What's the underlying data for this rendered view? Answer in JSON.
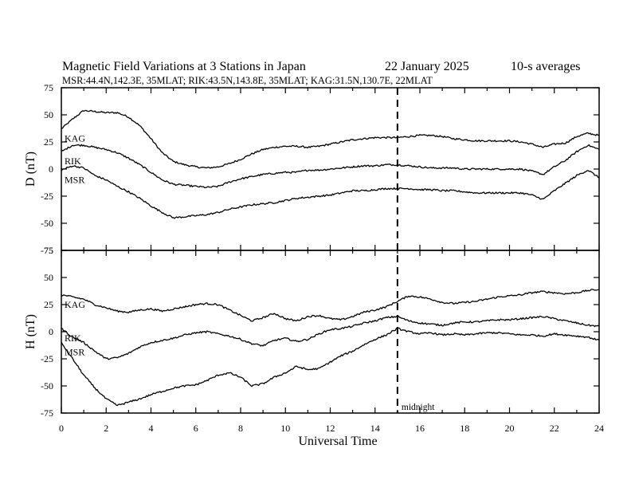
{
  "header": {
    "title": "Magnetic Field Variations at 3 Stations in Japan",
    "date": "22 January  2025",
    "averaging": "10-s averages",
    "stations": "MSR:44.4N,142.3E, 35MLAT;  RIK:43.5N,143.8E, 35MLAT;  KAG:31.5N,130.7E, 22MLAT"
  },
  "chart_data": [
    {
      "type": "line",
      "panel": "D",
      "ylabel": "D (nT)",
      "xlabel": "Universal Time",
      "xlim": [
        0,
        24
      ],
      "ylim": [
        -75,
        75
      ],
      "xticks": [
        0,
        2,
        4,
        6,
        8,
        10,
        12,
        14,
        16,
        18,
        20,
        22,
        24
      ],
      "yticks": [
        75,
        50,
        25,
        0,
        -25,
        -50,
        -75
      ],
      "grid": false,
      "x": [
        0,
        0.5,
        1,
        1.5,
        2,
        2.5,
        3,
        3.5,
        4,
        4.5,
        5,
        5.5,
        6,
        6.5,
        7,
        7.5,
        8,
        8.5,
        9,
        9.5,
        10,
        10.5,
        11,
        11.5,
        12,
        12.5,
        13,
        13.5,
        14,
        14.5,
        15,
        15.5,
        16,
        16.5,
        17,
        17.5,
        18,
        18.5,
        19,
        19.5,
        20,
        20.5,
        21,
        21.5,
        22,
        22.5,
        23,
        23.5,
        24
      ],
      "series": [
        {
          "name": "KAG",
          "values": [
            37,
            46,
            54,
            53,
            52,
            52,
            48,
            40,
            28,
            15,
            7,
            4,
            2,
            1,
            2,
            5,
            9,
            14,
            18,
            20,
            21,
            21,
            20,
            21,
            23,
            25,
            27,
            28,
            29,
            29,
            29,
            30,
            31,
            31,
            30,
            28,
            27,
            26,
            26,
            26,
            26,
            25,
            23,
            20,
            23,
            24,
            30,
            33,
            31
          ]
        },
        {
          "name": "RIK",
          "values": [
            16,
            22,
            22,
            20,
            18,
            15,
            10,
            4,
            -3,
            -10,
            -14,
            -15,
            -16,
            -17,
            -16,
            -12,
            -9,
            -7,
            -5,
            -4,
            -3,
            -3,
            -1,
            -1,
            0,
            1,
            2,
            3,
            3,
            4,
            4,
            3,
            2,
            1,
            1,
            1,
            0,
            0,
            0,
            0,
            0,
            0,
            -2,
            -5,
            2,
            8,
            16,
            22,
            18
          ]
        },
        {
          "name": "MSR",
          "values": [
            -1,
            3,
            1,
            -6,
            -10,
            -16,
            -21,
            -27,
            -34,
            -40,
            -45,
            -44,
            -43,
            -42,
            -40,
            -37,
            -35,
            -33,
            -32,
            -31,
            -29,
            -27,
            -26,
            -25,
            -24,
            -22,
            -20,
            -20,
            -19,
            -18,
            -18,
            -18,
            -19,
            -19,
            -20,
            -20,
            -21,
            -22,
            -22,
            -22,
            -22,
            -22,
            -24,
            -28,
            -20,
            -13,
            -6,
            -1,
            -8
          ]
        }
      ]
    },
    {
      "type": "line",
      "panel": "H",
      "ylabel": "H (nT)",
      "xlabel": "Universal Time",
      "xlim": [
        0,
        24
      ],
      "ylim": [
        -75,
        75
      ],
      "xticks": [
        0,
        2,
        4,
        6,
        8,
        10,
        12,
        14,
        16,
        18,
        20,
        22,
        24
      ],
      "yticks": [
        75,
        50,
        25,
        0,
        -25,
        -50,
        -75
      ],
      "grid": false,
      "x": [
        0,
        0.5,
        1,
        1.5,
        2,
        2.5,
        3,
        3.5,
        4,
        4.5,
        5,
        5.5,
        6,
        6.5,
        7,
        7.5,
        8,
        8.5,
        9,
        9.5,
        10,
        10.5,
        11,
        11.5,
        12,
        12.5,
        13,
        13.5,
        14,
        14.5,
        15,
        15.5,
        16,
        16.5,
        17,
        17.5,
        18,
        18.5,
        19,
        19.5,
        20,
        20.5,
        21,
        21.5,
        22,
        22.5,
        23,
        23.5,
        24
      ],
      "series": [
        {
          "name": "KAG",
          "values": [
            34,
            32,
            30,
            25,
            22,
            19,
            18,
            20,
            21,
            19,
            21,
            23,
            25,
            26,
            25,
            20,
            15,
            10,
            13,
            17,
            12,
            10,
            14,
            15,
            12,
            11,
            14,
            18,
            20,
            23,
            28,
            33,
            32,
            30,
            27,
            26,
            27,
            28,
            30,
            32,
            33,
            34,
            36,
            37,
            36,
            35,
            36,
            38,
            39
          ]
        },
        {
          "name": "RIK",
          "values": [
            3,
            -5,
            -10,
            -18,
            -25,
            -24,
            -20,
            -14,
            -10,
            -8,
            -6,
            -3,
            -1,
            0,
            -2,
            -4,
            -7,
            -11,
            -13,
            -8,
            -6,
            -9,
            -7,
            -2,
            2,
            3,
            5,
            8,
            10,
            13,
            14,
            10,
            8,
            7,
            6,
            8,
            9,
            9,
            10,
            11,
            11,
            12,
            13,
            14,
            12,
            10,
            8,
            6,
            5
          ]
        },
        {
          "name": "MSR",
          "values": [
            -10,
            -25,
            -40,
            -52,
            -62,
            -68,
            -65,
            -62,
            -58,
            -55,
            -52,
            -50,
            -49,
            -45,
            -40,
            -38,
            -42,
            -50,
            -48,
            -42,
            -38,
            -32,
            -35,
            -34,
            -28,
            -22,
            -18,
            -12,
            -7,
            -3,
            3,
            0,
            -2,
            -1,
            -3,
            -2,
            -3,
            -2,
            -1,
            -1,
            -2,
            -3,
            -3,
            -4,
            -2,
            -3,
            -4,
            -5,
            -8
          ]
        }
      ]
    }
  ],
  "annotations": {
    "midnight_label": "midnight",
    "midnight_ut": 15
  }
}
